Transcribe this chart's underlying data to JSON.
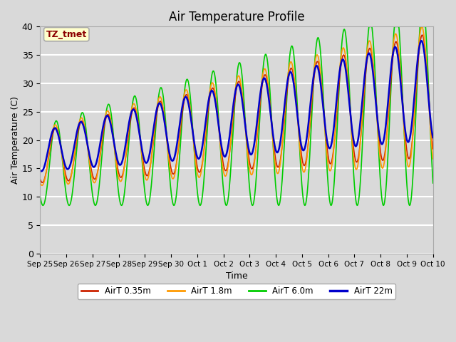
{
  "title": "Air Temperature Profile",
  "xlabel": "Time",
  "ylabel": "Air Temperature (C)",
  "ylim": [
    0,
    40
  ],
  "background_color": "#d9d9d9",
  "plot_bg_color": "#d9d9d9",
  "grid_color": "white",
  "annotation_text": "TZ_tmet",
  "annotation_color": "#8B0000",
  "annotation_bg": "#ffffcc",
  "annotation_edge": "#aaaaaa",
  "series": [
    {
      "label": "AirT 0.35m",
      "color": "#cc2200",
      "lw": 1.2
    },
    {
      "label": "AirT 1.8m",
      "color": "#ff9900",
      "lw": 1.2
    },
    {
      "label": "AirT 6.0m",
      "color": "#00cc00",
      "lw": 1.2
    },
    {
      "label": "AirT 22m",
      "color": "#0000cc",
      "lw": 1.8
    }
  ],
  "xtick_labels": [
    "Sep 25",
    "Sep 26",
    "Sep 27",
    "Sep 28",
    "Sep 29",
    "Sep 30",
    "Oct 1",
    "Oct 2",
    "Oct 3",
    "Oct 4",
    "Oct 5",
    "Oct 6",
    "Oct 7",
    "Oct 8",
    "Oct 9",
    "Oct 10"
  ],
  "num_days": 15,
  "figwidth": 6.4,
  "figheight": 4.8,
  "dpi": 100
}
